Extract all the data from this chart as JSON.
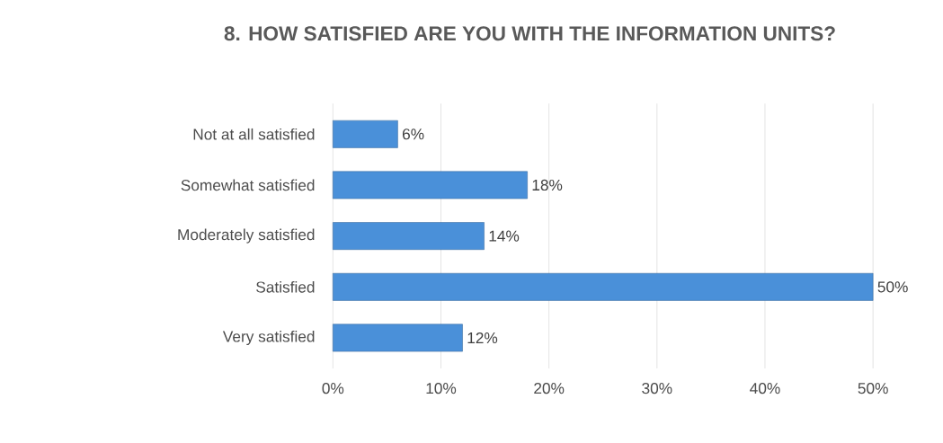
{
  "chart_data": {
    "type": "bar",
    "orientation": "horizontal",
    "title": "8. HOW SATISFIED ARE YOU WITH THE INFORMATION UNITS?",
    "categories": [
      "Not at all satisfied",
      "Somewhat satisfied",
      "Moderately satisfied",
      "Satisfied",
      "Very satisfied"
    ],
    "values": [
      6,
      18,
      14,
      50,
      12
    ],
    "value_labels": [
      "6%",
      "18%",
      "14%",
      "50%",
      "12%"
    ],
    "color": "#4a90d9",
    "xlim": [
      0,
      50
    ],
    "xticks": [
      {
        "value": 0,
        "label": "0%"
      },
      {
        "value": 10,
        "label": "10%"
      },
      {
        "value": 20,
        "label": "20%"
      },
      {
        "value": 30,
        "label": "30%"
      },
      {
        "value": 40,
        "label": "40%"
      },
      {
        "value": 50,
        "label": "50%"
      }
    ],
    "grid": "x"
  }
}
